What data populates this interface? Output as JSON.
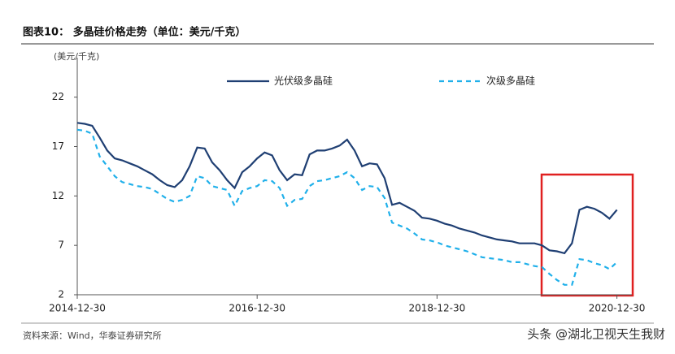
{
  "title": "图表10：  多晶硅价格走势（单位：美元/千克）",
  "source": "资料来源：Wind，华泰证券研究所",
  "watermark": "头条 @湖北卫视天生我财",
  "chart_data": {
    "type": "line",
    "y_label": "(美元/千克)",
    "x": [
      "2014-12",
      "2015-01",
      "2015-02",
      "2015-03",
      "2015-04",
      "2015-05",
      "2015-06",
      "2015-07",
      "2015-08",
      "2015-09",
      "2015-10",
      "2015-11",
      "2015-12",
      "2016-01",
      "2016-02",
      "2016-03",
      "2016-04",
      "2016-05",
      "2016-06",
      "2016-07",
      "2016-08",
      "2016-09",
      "2016-10",
      "2016-11",
      "2016-12",
      "2017-01",
      "2017-02",
      "2017-03",
      "2017-04",
      "2017-05",
      "2017-06",
      "2017-07",
      "2017-08",
      "2017-09",
      "2017-10",
      "2017-11",
      "2017-12",
      "2018-01",
      "2018-02",
      "2018-03",
      "2018-04",
      "2018-05",
      "2018-06",
      "2018-07",
      "2018-08",
      "2018-09",
      "2018-10",
      "2018-11",
      "2018-12",
      "2019-01",
      "2019-02",
      "2019-03",
      "2019-04",
      "2019-05",
      "2019-06",
      "2019-07",
      "2019-08",
      "2019-09",
      "2019-10",
      "2019-11",
      "2019-12",
      "2020-01",
      "2020-02",
      "2020-03",
      "2020-04",
      "2020-05",
      "2020-06",
      "2020-07",
      "2020-08",
      "2020-09",
      "2020-10",
      "2020-11",
      "2020-12"
    ],
    "series": [
      {
        "name": "光伏级多晶硅",
        "color": "#1f3f73",
        "dashed": false,
        "values": [
          19.4,
          19.3,
          19.1,
          17.9,
          16.6,
          15.8,
          15.6,
          15.3,
          15.0,
          14.6,
          14.2,
          13.6,
          13.1,
          12.9,
          13.6,
          15.0,
          16.9,
          16.8,
          15.4,
          14.6,
          13.6,
          12.8,
          14.4,
          15.0,
          15.8,
          16.4,
          16.1,
          14.6,
          13.6,
          14.2,
          14.1,
          16.2,
          16.6,
          16.6,
          16.8,
          17.1,
          17.7,
          16.6,
          15.0,
          15.3,
          15.2,
          13.8,
          11.1,
          11.3,
          10.9,
          10.5,
          9.8,
          9.7,
          9.5,
          9.2,
          9.0,
          8.7,
          8.5,
          8.3,
          8.0,
          7.8,
          7.6,
          7.5,
          7.4,
          7.2,
          7.2,
          7.2,
          7.0,
          6.5,
          6.4,
          6.2,
          7.2,
          10.6,
          10.9,
          10.7,
          10.3,
          9.7,
          10.6
        ]
      },
      {
        "name": "次级多晶硅",
        "color": "#20b0ea",
        "dashed": true,
        "values": [
          18.7,
          18.6,
          18.3,
          16.0,
          15.0,
          14.0,
          13.4,
          13.2,
          13.0,
          12.9,
          12.7,
          12.2,
          11.7,
          11.4,
          11.6,
          12.0,
          14.0,
          13.8,
          13.0,
          12.8,
          12.6,
          11.0,
          12.5,
          12.8,
          13.0,
          13.6,
          13.5,
          12.8,
          11.0,
          11.6,
          11.7,
          13.0,
          13.5,
          13.6,
          13.8,
          14.0,
          14.4,
          13.8,
          12.6,
          13.0,
          12.9,
          11.8,
          9.3,
          9.0,
          8.7,
          8.2,
          7.6,
          7.5,
          7.3,
          7.0,
          6.8,
          6.6,
          6.4,
          6.1,
          5.8,
          5.7,
          5.6,
          5.5,
          5.3,
          5.3,
          5.1,
          4.9,
          4.8,
          4.1,
          3.5,
          3.0,
          3.0,
          5.6,
          5.5,
          5.2,
          5.0,
          4.6,
          5.3
        ]
      }
    ],
    "xlim": [
      "2014-12",
      "2021-02"
    ],
    "xticks": [
      {
        "value": "2014-12",
        "label": "2014-12-30"
      },
      {
        "value": "2016-12",
        "label": "2016-12-30"
      },
      {
        "value": "2018-12",
        "label": "2018-12-30"
      },
      {
        "value": "2020-12",
        "label": "2020-12-30"
      }
    ],
    "ylim": [
      2,
      26
    ],
    "yticks": [
      2,
      7,
      12,
      17,
      22
    ],
    "grid": false,
    "legend": "top"
  }
}
